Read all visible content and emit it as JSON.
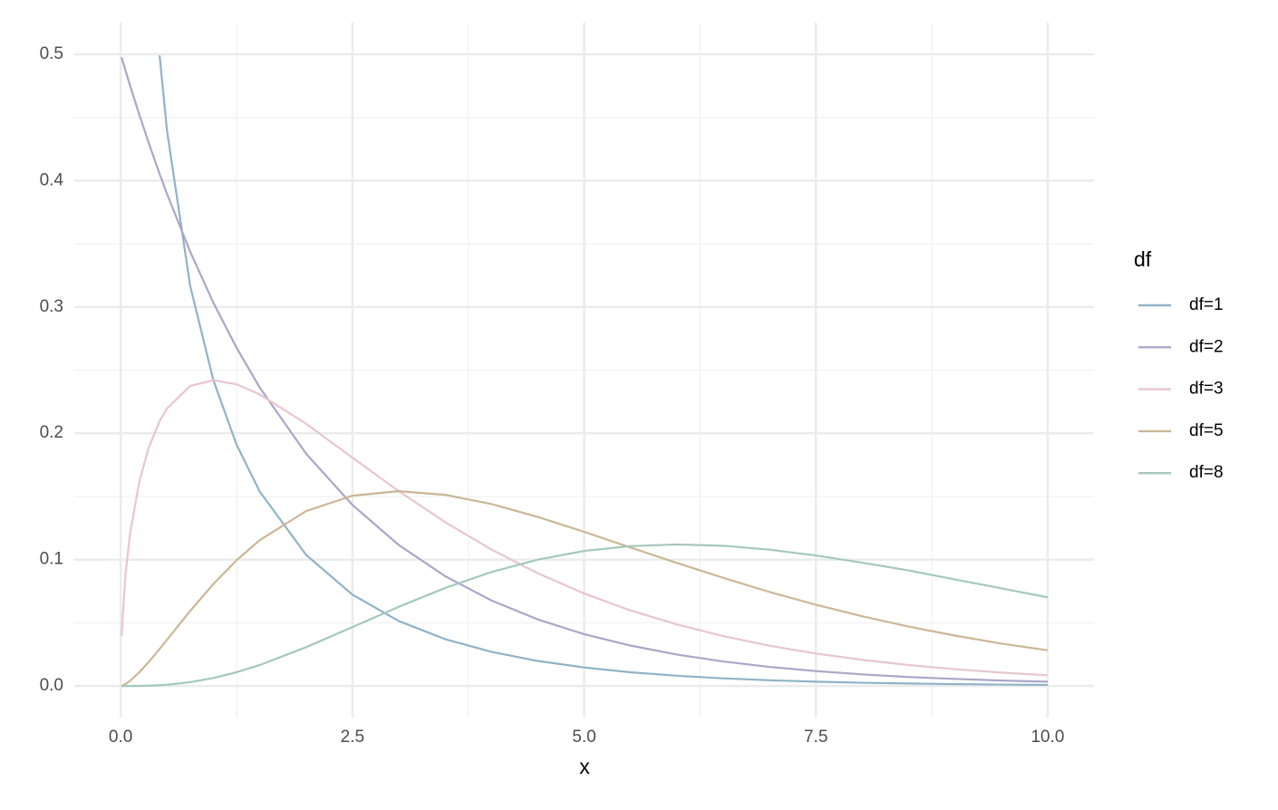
{
  "chart_data": {
    "type": "line",
    "x_label": "x",
    "legend_title": "df",
    "legend": "right",
    "grid": true,
    "minor_grid": true,
    "xlim": [
      -0.5,
      10.5
    ],
    "ylim": [
      -0.025,
      0.525
    ],
    "xticks": [
      {
        "value": 0,
        "label": "0.0"
      },
      2.5,
      {
        "value": 5,
        "label": "5.0"
      },
      7.5,
      {
        "value": 10,
        "label": "10.0"
      }
    ],
    "yticks": [
      {
        "value": 0,
        "label": "0.0"
      },
      0.1,
      0.2,
      0.3,
      0.4,
      0.5
    ],
    "x": [
      0.01,
      0.05,
      0.1,
      0.2,
      0.3,
      0.42,
      0.5,
      0.75,
      1,
      1.25,
      1.5,
      2,
      2.5,
      3,
      3.5,
      4,
      4.5,
      5,
      5.5,
      6,
      6.5,
      7,
      7.5,
      8,
      8.5,
      9,
      9.5,
      10
    ],
    "series": [
      {
        "name": "df=1",
        "color": "#8fb3c8",
        "values": [
          null,
          null,
          null,
          null,
          null,
          0.499,
          0.4394,
          0.3166,
          0.242,
          0.191,
          0.1539,
          0.1038,
          0.0723,
          0.0514,
          0.0371,
          0.027,
          0.0198,
          0.01465,
          0.01087,
          0.00811,
          0.00607,
          0.00455,
          0.00342,
          0.00258,
          0.00196,
          0.00148,
          0.00112,
          0.00085
        ]
      },
      {
        "name": "df=2",
        "color": "#aba6c8",
        "values": [
          0.4975,
          0.4877,
          0.4756,
          0.4524,
          0.4304,
          0.4053,
          0.3894,
          0.3437,
          0.3033,
          0.2677,
          0.2362,
          0.1839,
          0.1433,
          0.1116,
          0.0869,
          0.0677,
          0.0527,
          0.041,
          0.032,
          0.0249,
          0.0194,
          0.0151,
          0.0118,
          0.0092,
          0.0071,
          0.0056,
          0.0043,
          0.0034
        ]
      },
      {
        "name": "df=3",
        "color": "#e8c6ce",
        "values": [
          0.0397,
          0.087,
          0.12,
          0.1614,
          0.1881,
          0.2096,
          0.2197,
          0.2375,
          0.242,
          0.2388,
          0.2308,
          0.2076,
          0.1807,
          0.1542,
          0.1297,
          0.108,
          0.0892,
          0.0732,
          0.0598,
          0.0487,
          0.0395,
          0.0319,
          0.0257,
          0.0207,
          0.0166,
          0.0133,
          0.0106,
          0.0085
        ]
      },
      {
        "name": "df=5",
        "color": "#cbb796",
        "values": [
          0.00013,
          0.00145,
          0.004,
          0.0108,
          0.0188,
          0.0293,
          0.0366,
          0.0594,
          0.0807,
          0.0995,
          0.1154,
          0.1384,
          0.1506,
          0.1542,
          0.1513,
          0.144,
          0.1338,
          0.122,
          0.1096,
          0.0974,
          0.0856,
          0.0744,
          0.0643,
          0.0552,
          0.047,
          0.0399,
          0.0336,
          0.0283
        ]
      },
      {
        "name": "df=8",
        "color": "#a5c8bc",
        "values": [
          0,
          0,
          1e-05,
          7.5e-05,
          0.00024,
          0.00063,
          0.00101,
          0.00302,
          0.00632,
          0.01089,
          0.01661,
          0.0307,
          0.0466,
          0.0627,
          0.0776,
          0.0902,
          0.1,
          0.1069,
          0.1107,
          0.112,
          0.111,
          0.1079,
          0.1033,
          0.0976,
          0.0915,
          0.0843,
          0.0773,
          0.0702
        ]
      }
    ]
  }
}
